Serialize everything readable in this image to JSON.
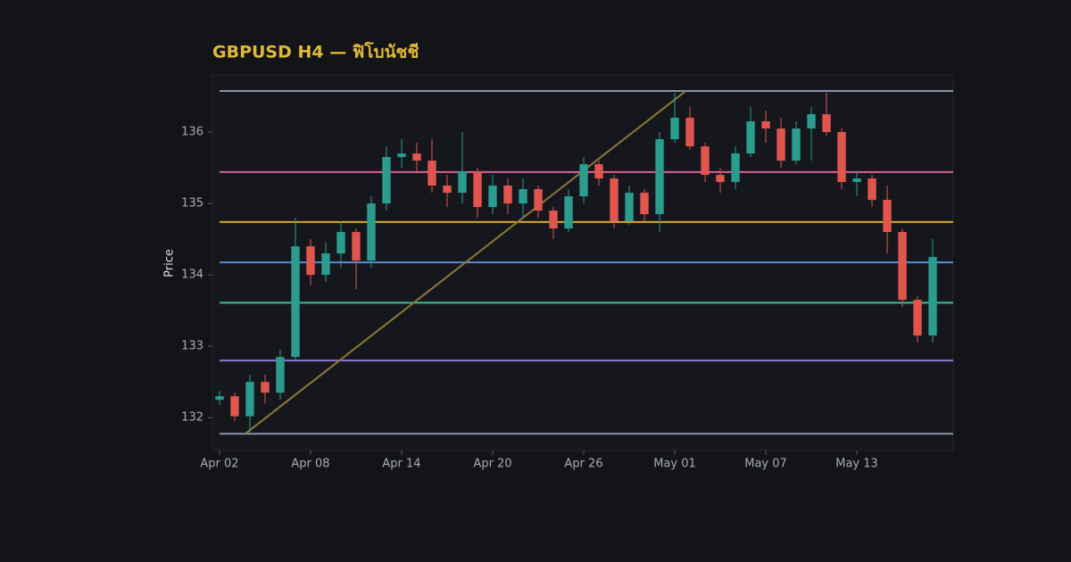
{
  "chart_data": {
    "type": "candlestick",
    "title": "GBPUSD H4 — ฟิโบนัชชี",
    "y_label": "Price",
    "x": [
      0,
      1,
      2,
      3,
      4,
      5,
      6,
      7,
      8,
      9,
      10,
      11,
      12,
      13,
      14,
      15,
      16,
      17,
      18,
      19,
      20,
      21,
      22,
      23,
      24,
      25,
      26,
      27,
      28,
      29,
      30,
      31,
      32,
      33,
      34,
      35,
      36,
      37,
      38,
      39,
      40,
      41,
      42,
      43,
      44,
      45,
      46,
      47
    ],
    "open": [
      132.25,
      132.3,
      132.02,
      132.5,
      132.35,
      132.85,
      134.4,
      134.0,
      134.3,
      134.6,
      134.2,
      135.0,
      135.65,
      135.7,
      135.6,
      135.25,
      135.15,
      135.45,
      134.95,
      135.25,
      135.0,
      135.2,
      134.9,
      134.65,
      135.1,
      135.55,
      135.35,
      134.75,
      135.15,
      134.85,
      135.9,
      136.2,
      135.8,
      135.4,
      135.3,
      135.7,
      136.15,
      136.05,
      135.6,
      136.05,
      136.25,
      136.0,
      135.3,
      135.35,
      135.05,
      134.6,
      133.65,
      133.15
    ],
    "high": [
      132.38,
      132.35,
      132.6,
      132.6,
      132.95,
      134.8,
      134.5,
      134.45,
      134.75,
      134.65,
      135.1,
      135.8,
      135.9,
      135.85,
      135.9,
      135.4,
      136.0,
      135.5,
      135.4,
      135.35,
      135.35,
      135.25,
      134.95,
      135.2,
      135.65,
      135.6,
      135.4,
      135.25,
      135.2,
      136.0,
      136.55,
      136.35,
      135.85,
      135.5,
      135.8,
      136.35,
      136.3,
      136.2,
      136.15,
      136.35,
      136.55,
      136.05,
      135.45,
      135.4,
      135.25,
      134.65,
      133.7,
      134.5
    ],
    "low": [
      132.18,
      131.95,
      131.8,
      132.2,
      132.25,
      132.8,
      133.85,
      133.9,
      134.1,
      133.8,
      134.1,
      134.9,
      135.5,
      135.45,
      135.15,
      134.95,
      135.0,
      134.8,
      134.85,
      134.85,
      134.8,
      134.8,
      134.5,
      134.6,
      135.0,
      135.25,
      134.65,
      134.7,
      134.75,
      134.6,
      135.85,
      135.75,
      135.3,
      135.15,
      135.2,
      135.65,
      135.85,
      135.5,
      135.55,
      135.6,
      135.95,
      135.2,
      135.1,
      134.95,
      134.3,
      133.55,
      133.05,
      133.05
    ],
    "close": [
      132.3,
      132.02,
      132.5,
      132.35,
      132.85,
      134.4,
      134.0,
      134.3,
      134.6,
      134.2,
      135.0,
      135.65,
      135.7,
      135.6,
      135.25,
      135.15,
      135.45,
      134.95,
      135.25,
      135.0,
      135.2,
      134.9,
      134.65,
      135.1,
      135.55,
      135.35,
      134.75,
      135.15,
      134.85,
      135.9,
      136.2,
      135.8,
      135.4,
      135.3,
      135.7,
      136.15,
      136.05,
      135.6,
      136.05,
      136.25,
      136.0,
      135.3,
      135.35,
      135.05,
      134.6,
      133.65,
      133.15,
      134.25
    ],
    "up_color": "#2a9d8f",
    "down_color": "#e0564f",
    "fib_levels": [
      136.575,
      135.44,
      134.74,
      134.175,
      133.61,
      132.8,
      131.775
    ],
    "fib_colors": [
      "#8a93a6",
      "#d4619a",
      "#d9a62e",
      "#4f8fdc",
      "#3fbf8f",
      "#8f77d6",
      "#8a93a6"
    ],
    "trendline": {
      "x": [
        1.7,
        30.73
      ],
      "y": [
        131.775,
        136.575
      ],
      "color": "#8a7a3a"
    },
    "xlim": [
      -0.47,
      48.35
    ],
    "ylim": [
      131.54,
      136.8
    ],
    "xticks": [
      {
        "value": 0,
        "label": "Apr 02"
      },
      {
        "value": 6,
        "label": "Apr 08"
      },
      {
        "value": 12,
        "label": "Apr 14"
      },
      {
        "value": 18,
        "label": "Apr 20"
      },
      {
        "value": 24,
        "label": "Apr 26"
      },
      {
        "value": 30,
        "label": "May 01"
      },
      {
        "value": 36,
        "label": "May 07"
      },
      {
        "value": 42,
        "label": "May 13"
      }
    ],
    "yticks": [
      132,
      133,
      134,
      135,
      136
    ]
  }
}
